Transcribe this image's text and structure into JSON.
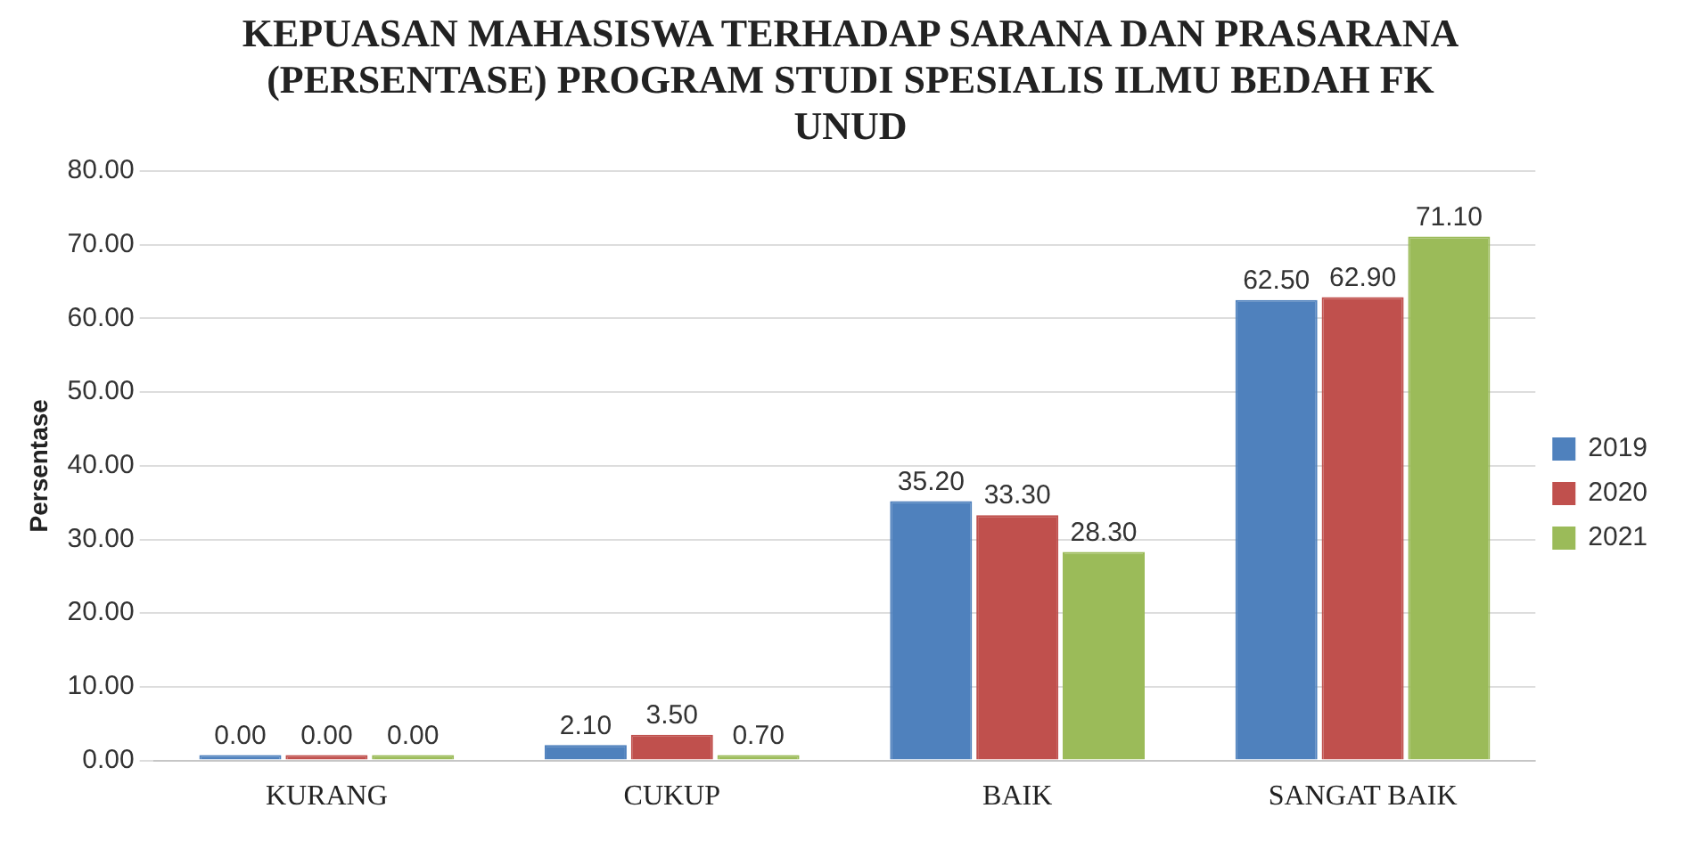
{
  "chart_data": {
    "type": "bar",
    "title": "KEPUASAN MAHASISWA TERHADAP SARANA DAN PRASARANA  (PERSENTASE) PROGRAM STUDI SPESIALIS ILMU BEDAH FK UNUD",
    "ylabel": "Persentase",
    "categories": [
      "KURANG",
      "CUKUP",
      "BAIK",
      "SANGAT BAIK"
    ],
    "series": [
      {
        "name": "2019",
        "color": "#4f81bd",
        "values": [
          0,
          2.1,
          35.2,
          62.5
        ],
        "value_labels": [
          "0.00",
          "2.10",
          "35.20",
          "62.50"
        ]
      },
      {
        "name": "2020",
        "color": "#c0504d",
        "values": [
          0,
          3.5,
          33.3,
          62.9
        ],
        "value_labels": [
          "0.00",
          "3.50",
          "33.30",
          "62.90"
        ]
      },
      {
        "name": "2021",
        "color": "#9bbb59",
        "values": [
          0,
          0.7,
          28.3,
          71.1
        ],
        "value_labels": [
          "0.00",
          "0.70",
          "28.30",
          "71.10"
        ]
      }
    ],
    "ylim": [
      0,
      80
    ],
    "yticks": [
      {
        "value": 0,
        "label": "0.00"
      },
      {
        "value": 10,
        "label": "10.00"
      },
      {
        "value": 20,
        "label": "20.00"
      },
      {
        "value": 30,
        "label": "30.00"
      },
      {
        "value": 40,
        "label": "40.00"
      },
      {
        "value": 50,
        "label": "50.00"
      },
      {
        "value": 60,
        "label": "60.00"
      },
      {
        "value": 70,
        "label": "70.00"
      },
      {
        "value": 80,
        "label": "80.00"
      }
    ],
    "grid": "y",
    "legend": "right"
  }
}
